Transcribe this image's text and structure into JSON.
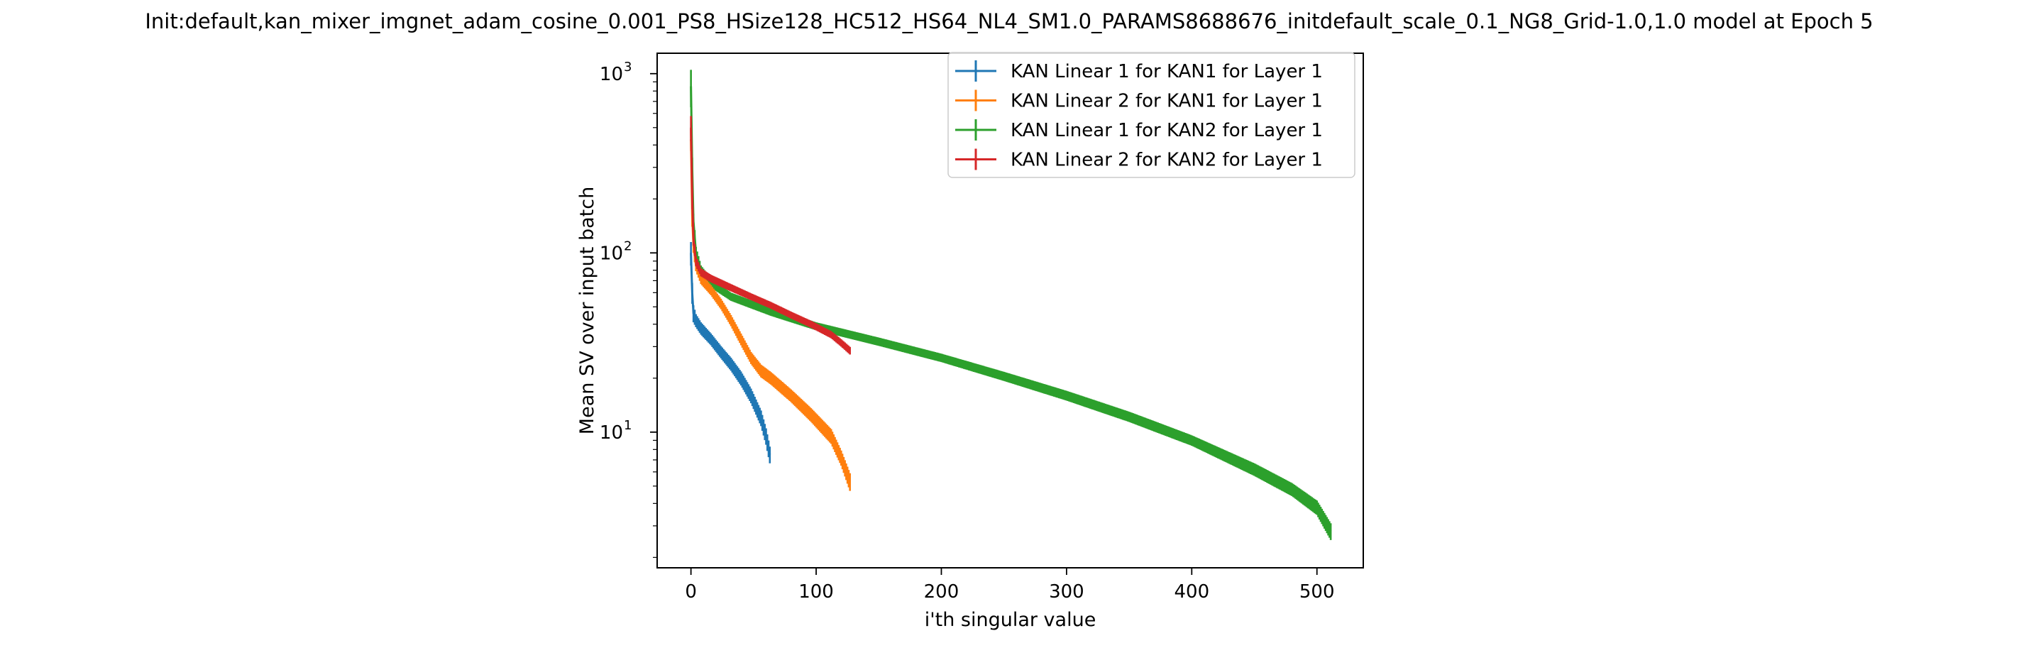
{
  "chart_data": {
    "type": "line",
    "title": "Init:default,kan_mixer_imgnet_adam_cosine_0.001_PS8_HSize128_HC512_HS64_NL4_SM1.0_PARAMS8688676_initdefault_scale_0.1_NG8_Grid-1.0,1.0 model at Epoch 5",
    "xlabel": "i'th singular value",
    "ylabel": "Mean SV over input batch",
    "xlim": [
      -27,
      537
    ],
    "ylim": [
      1.75,
      1300
    ],
    "y_scale": "log",
    "grid": false,
    "legend_position": "top-right",
    "error_bars": true,
    "x_ticks": [
      0,
      100,
      200,
      300,
      400,
      500
    ],
    "x_tick_labels": [
      "0",
      "100",
      "200",
      "300",
      "400",
      "500"
    ],
    "y_ticks": [
      10,
      100,
      1000
    ],
    "y_tick_labels": [
      "10",
      "10",
      "10"
    ],
    "y_tick_exponents": [
      "1",
      "2",
      "3"
    ],
    "series": [
      {
        "name": "KAN Linear 1 for KAN1 for Layer 1",
        "color": "#1f77b4",
        "n": 64,
        "x": [
          0,
          1,
          2,
          4,
          8,
          16,
          24,
          32,
          40,
          48,
          56,
          60,
          63
        ],
        "y": [
          100,
          60,
          46,
          42,
          38,
          33,
          28,
          24,
          20,
          16,
          12,
          9.5,
          7.5
        ],
        "err": [
          15,
          8,
          5,
          3.5,
          3,
          2.5,
          2.2,
          2,
          1.8,
          1.5,
          1.2,
          1,
          0.8
        ]
      },
      {
        "name": "KAN Linear 2 for KAN1 for Layer 1",
        "color": "#ff7f0e",
        "n": 128,
        "x": [
          0,
          1,
          2,
          4,
          8,
          16,
          24,
          32,
          40,
          48,
          56,
          64,
          80,
          96,
          112,
          120,
          127
        ],
        "y": [
          430,
          160,
          110,
          85,
          72,
          62,
          52,
          42,
          33,
          26,
          22,
          20,
          16,
          12.5,
          9.5,
          7.2,
          5.3
        ],
        "err": [
          60,
          20,
          10,
          6,
          5,
          4,
          3.5,
          3,
          2.5,
          2,
          1.8,
          1.6,
          1.3,
          1.1,
          0.9,
          0.7,
          0.6
        ]
      },
      {
        "name": "KAN Linear 1 for KAN2 for Layer 1",
        "color": "#2ca02c",
        "n": 512,
        "x": [
          0,
          1,
          2,
          4,
          8,
          16,
          32,
          64,
          100,
          150,
          200,
          250,
          300,
          350,
          400,
          450,
          480,
          500,
          511
        ],
        "y": [
          850,
          300,
          150,
          100,
          80,
          68,
          57,
          47,
          39,
          32,
          26,
          20.5,
          16,
          12.2,
          9,
          6.2,
          4.8,
          3.8,
          2.8
        ],
        "err": [
          200,
          40,
          15,
          8,
          5,
          4,
          3,
          2.5,
          2,
          1.7,
          1.4,
          1.2,
          1,
          0.8,
          0.6,
          0.5,
          0.4,
          0.35,
          0.3
        ]
      },
      {
        "name": "KAN Linear 2 for KAN2 for Layer 1",
        "color": "#d62728",
        "n": 128,
        "x": [
          0,
          1,
          2,
          4,
          8,
          16,
          32,
          48,
          64,
          80,
          96,
          112,
          120,
          127
        ],
        "y": [
          500,
          200,
          120,
          90,
          78,
          72,
          64,
          57,
          51,
          45,
          40,
          35,
          31.5,
          28.5
        ],
        "err": [
          80,
          25,
          10,
          6,
          4,
          3.5,
          3,
          2.5,
          2.2,
          2,
          1.8,
          1.6,
          1.5,
          1.4
        ]
      }
    ]
  }
}
